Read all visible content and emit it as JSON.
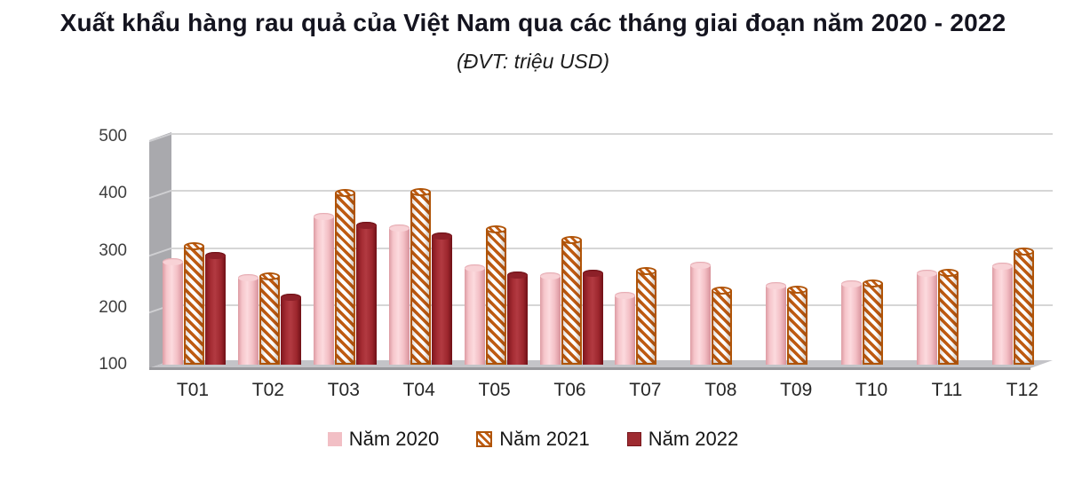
{
  "title": "Xuất khẩu hàng rau quả của Việt Nam qua các tháng giai đoạn năm 2020 - 2022",
  "subtitle": "(ĐVT: triệu USD)",
  "chart_data": {
    "type": "bar",
    "title": "Xuất khẩu hàng rau quả của Việt Nam qua các tháng giai đoạn năm 2020 - 2022",
    "unit_label": "(ĐVT: triệu USD)",
    "categories": [
      "T01",
      "T02",
      "T03",
      "T04",
      "T05",
      "T06",
      "T07",
      "T08",
      "T09",
      "T10",
      "T11",
      "T12"
    ],
    "series": [
      {
        "name": "Năm 2020",
        "style": "solid-pink",
        "color": "#f2bfc5",
        "values": [
          280,
          252,
          360,
          340,
          270,
          256,
          222,
          274,
          238,
          242,
          260,
          273
        ]
      },
      {
        "name": "Năm 2021",
        "style": "orange-diagonal-hatch",
        "color": "#bf5b12",
        "values": [
          308,
          255,
          402,
          403,
          338,
          320,
          265,
          230,
          233,
          243,
          262,
          299
        ]
      },
      {
        "name": "Năm 2022",
        "style": "solid-dark-red",
        "color": "#9e2b31",
        "values": [
          291,
          218,
          344,
          326,
          258,
          260,
          null,
          null,
          null,
          null,
          null,
          null
        ]
      }
    ],
    "xlabel": "",
    "ylabel": "",
    "ylim": [
      100,
      500
    ],
    "yticks": [
      100,
      200,
      300,
      400,
      500
    ],
    "grid": "horizontal",
    "legend_position": "bottom",
    "effect": "3d-cylinder"
  }
}
